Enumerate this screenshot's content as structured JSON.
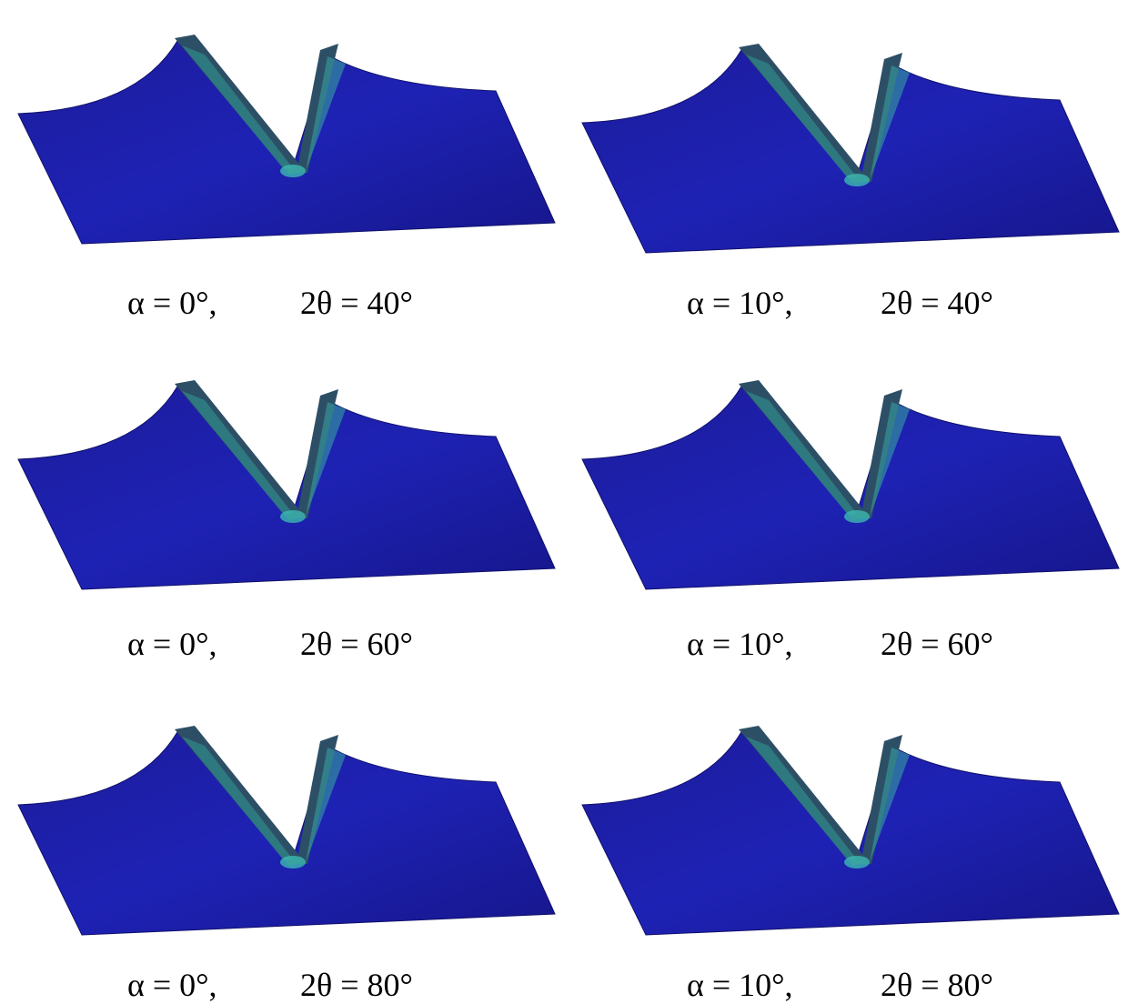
{
  "panels": [
    {
      "alpha": "α = 0°,",
      "angle": "2θ = 40°"
    },
    {
      "alpha": "α = 10°,",
      "angle": "2θ = 40°"
    },
    {
      "alpha": "α = 0°,",
      "angle": "2θ = 60°"
    },
    {
      "alpha": "α = 10°,",
      "angle": "2θ = 60°"
    },
    {
      "alpha": "α = 0°,",
      "angle": "2θ = 80°"
    },
    {
      "alpha": "α = 10°,",
      "angle": "2θ = 80°"
    }
  ]
}
